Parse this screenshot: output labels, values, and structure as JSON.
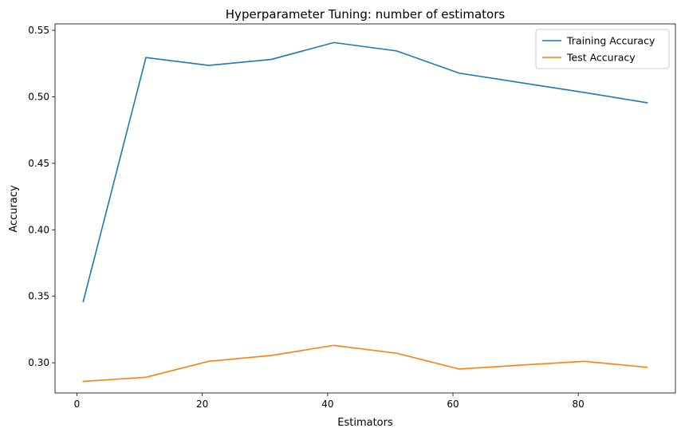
{
  "chart_data": {
    "type": "line",
    "title": "Hyperparameter Tuning: number of estimators",
    "xlabel": "Estimators",
    "ylabel": "Accuracy",
    "x": [
      1,
      11,
      21,
      31,
      41,
      51,
      61,
      71,
      81,
      91
    ],
    "series": [
      {
        "name": "Training Accuracy",
        "color": "#1f77b4",
        "values": [
          0.346,
          0.5295,
          0.5236,
          0.5281,
          0.5408,
          0.5345,
          0.5178,
          0.5105,
          0.5032,
          0.4955
        ]
      },
      {
        "name": "Test Accuracy",
        "color": "#ff7f0e",
        "values": [
          0.286,
          0.2891,
          0.3011,
          0.3055,
          0.3131,
          0.3072,
          0.2953,
          0.2983,
          0.3011,
          0.2966
        ]
      }
    ],
    "xlim": [
      -3.5,
      95.5
    ],
    "ylim": [
      0.2773,
      0.5548
    ],
    "xticks": [
      0,
      20,
      40,
      60,
      80
    ],
    "xtick_labels": [
      "0",
      "20",
      "40",
      "60",
      "80"
    ],
    "yticks": [
      0.3,
      0.35,
      0.4,
      0.45,
      0.5,
      0.55
    ],
    "ytick_labels": [
      "0.30",
      "0.35",
      "0.40",
      "0.45",
      "0.50",
      "0.55"
    ],
    "grid": false,
    "legend_position": "top-right"
  }
}
